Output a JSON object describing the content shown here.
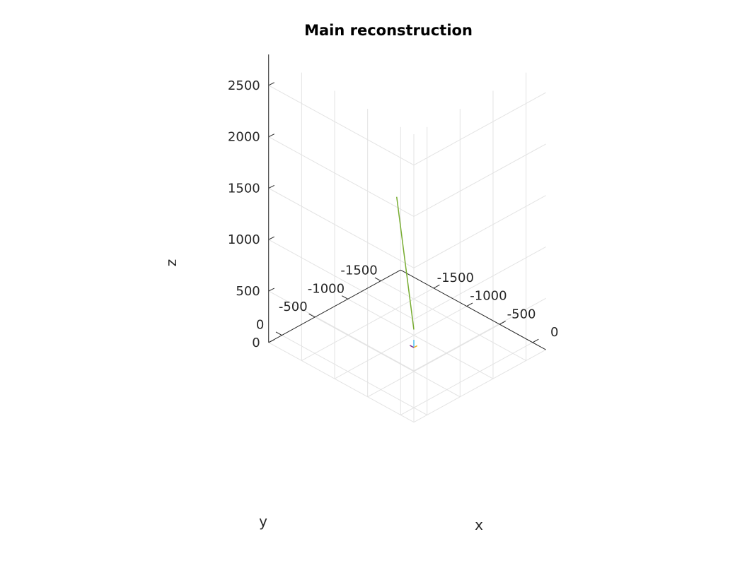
{
  "chart_data": {
    "type": "line",
    "projection": "3d",
    "title": "Main reconstruction",
    "xlabel": "x",
    "ylabel": "y",
    "zlabel": "z",
    "xlim": [
      -2000,
      200
    ],
    "ylim": [
      -1800,
      200
    ],
    "zlim": [
      0,
      2800
    ],
    "xticks": [
      0,
      -500,
      -1000,
      -1500
    ],
    "xtick_labels": [
      "0",
      "-500",
      "-1000",
      "-1500"
    ],
    "yticks": [
      0,
      -500,
      -1000,
      -1500
    ],
    "ytick_labels": [
      "0",
      "-500",
      "-1000",
      "-1500"
    ],
    "zticks": [
      0,
      500,
      1000,
      1500,
      2000,
      2500
    ],
    "ztick_labels": [
      "0",
      "500",
      "1000",
      "1500",
      "2000",
      "2500"
    ],
    "grid": true,
    "series": [
      {
        "color": "#77ac30",
        "points": [
          {
            "x": 0,
            "y": 0,
            "z": 760
          },
          {
            "x": -130,
            "y": 130,
            "z": 2050
          }
        ]
      },
      {
        "color": "#4dbeee",
        "points": [
          {
            "x": 0,
            "y": 0,
            "z": 585
          },
          {
            "x": 0,
            "y": 0,
            "z": 660
          }
        ]
      },
      {
        "color": "#7e2f8e",
        "points": [
          {
            "x": 0,
            "y": 0,
            "z": 585
          },
          {
            "x": -60,
            "y": 0,
            "z": 585
          }
        ]
      },
      {
        "color": "#edb120",
        "points": [
          {
            "x": 0,
            "y": 0,
            "z": 585
          },
          {
            "x": 0,
            "y": -50,
            "z": 585
          }
        ]
      }
    ]
  }
}
